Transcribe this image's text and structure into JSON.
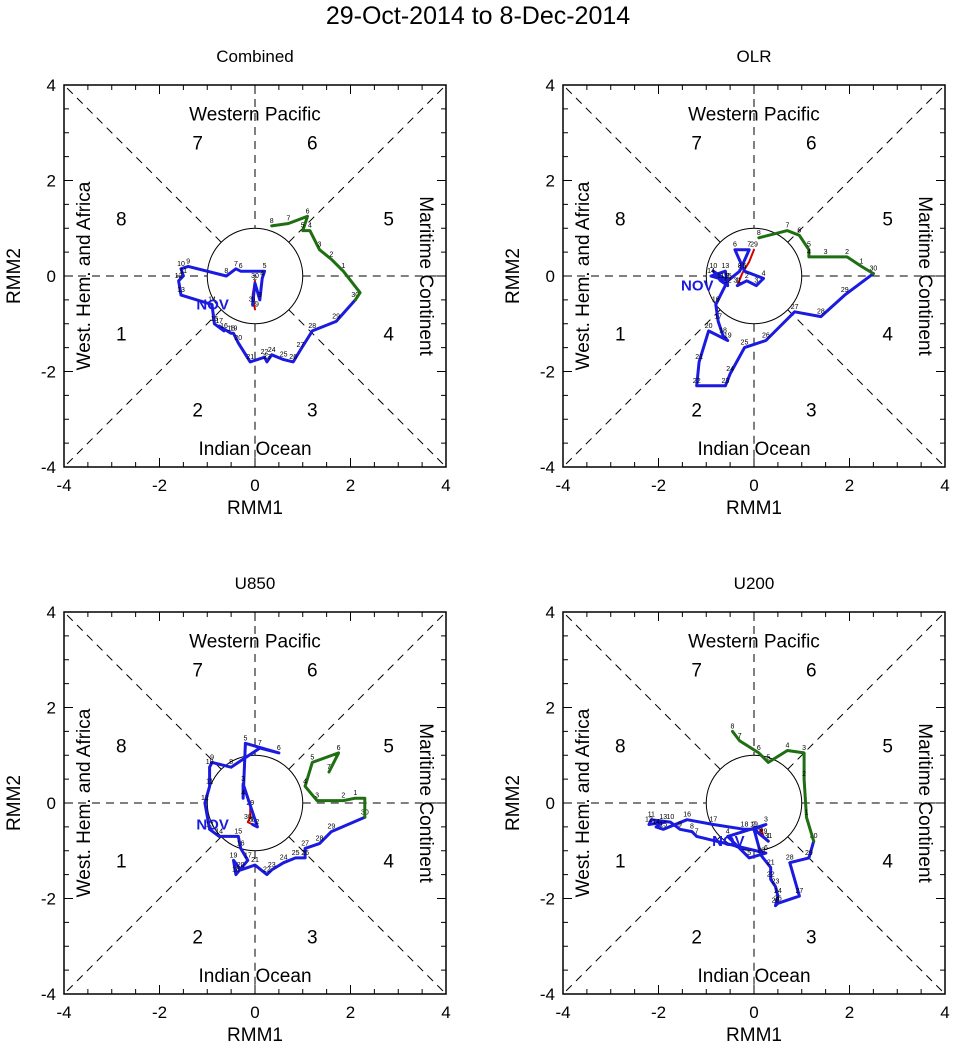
{
  "figure": {
    "title": "29-Oct-2014 to 8-Dec-2014",
    "month_label": "NOV",
    "colors": {
      "oct": "#d40000",
      "nov": "#1a1ae0",
      "dec": "#1f6e12",
      "month_label": "#1a1ae0",
      "axis": "#000000"
    }
  },
  "chart_data": [
    {
      "type": "line",
      "title": "Combined",
      "xlabel": "RMM1",
      "ylabel": "RMM2",
      "xlim": [
        -4,
        4
      ],
      "ylim": [
        -4,
        4
      ],
      "xticks": [
        "-4",
        "-2",
        "0",
        "2",
        "4"
      ],
      "yticks": [
        "-4",
        "-2",
        "0",
        "2",
        "4"
      ],
      "regions": {
        "top": "Western Pacific",
        "bottom": "Indian Ocean",
        "left": "West. Hem. and Africa",
        "right": "Maritime Continent"
      },
      "phases": [
        "1",
        "2",
        "3",
        "4",
        "5",
        "6",
        "7",
        "8"
      ],
      "series": [
        {
          "name": "October",
          "points": [
            [
              0.0,
              -0.7,
              "29"
            ],
            [
              -0.05,
              -0.4,
              ""
            ],
            [
              0.0,
              -0.1,
              "30"
            ],
            [
              -0.05,
              -0.6,
              "31"
            ]
          ]
        },
        {
          "name": "November",
          "points": [
            [
              -0.05,
              -0.6,
              "1"
            ],
            [
              0.0,
              -0.15,
              "2"
            ],
            [
              0.1,
              -0.5,
              "3"
            ],
            [
              0.15,
              -0.05,
              "4"
            ],
            [
              0.2,
              0.1,
              "5"
            ],
            [
              -0.3,
              0.1,
              "6"
            ],
            [
              -0.4,
              0.15,
              "7"
            ],
            [
              -0.6,
              0.0,
              "8"
            ],
            [
              -1.4,
              0.2,
              "9"
            ],
            [
              -1.55,
              0.15,
              "10"
            ],
            [
              -1.5,
              0.0,
              "11"
            ],
            [
              -1.6,
              -0.1,
              "12"
            ],
            [
              -1.55,
              -0.4,
              "13"
            ],
            [
              -0.9,
              -0.6,
              "14"
            ],
            [
              -0.85,
              -1.0,
              "15"
            ],
            [
              -0.65,
              -1.15,
              "16"
            ],
            [
              -0.75,
              -1.05,
              "17"
            ],
            [
              -0.5,
              -1.2,
              "18"
            ],
            [
              -0.45,
              -1.2,
              "19"
            ],
            [
              -0.35,
              -1.4,
              "20"
            ],
            [
              -0.1,
              -1.8,
              "21"
            ],
            [
              0.2,
              -1.7,
              "22"
            ],
            [
              0.25,
              -1.8,
              "23"
            ],
            [
              0.35,
              -1.65,
              "24"
            ],
            [
              0.6,
              -1.75,
              "25"
            ],
            [
              0.8,
              -1.8,
              "26"
            ],
            [
              0.95,
              -1.55,
              "27"
            ],
            [
              1.2,
              -1.15,
              "28"
            ],
            [
              1.7,
              -0.95,
              "29"
            ],
            [
              2.1,
              -0.5,
              "30"
            ]
          ]
        },
        {
          "name": "December",
          "points": [
            [
              2.1,
              -0.5,
              ""
            ],
            [
              2.2,
              -0.35,
              ""
            ],
            [
              1.85,
              0.1,
              "1"
            ],
            [
              1.6,
              0.35,
              "2"
            ],
            [
              1.35,
              0.55,
              "3"
            ],
            [
              1.15,
              0.95,
              "4"
            ],
            [
              1.0,
              0.95,
              "5"
            ],
            [
              1.1,
              1.25,
              "6"
            ],
            [
              0.7,
              1.1,
              "7"
            ],
            [
              0.35,
              1.05,
              "8"
            ]
          ]
        }
      ]
    },
    {
      "type": "line",
      "title": "OLR",
      "xlabel": "RMM1",
      "ylabel": "RMM2",
      "xlim": [
        -4,
        4
      ],
      "ylim": [
        -4,
        4
      ],
      "xticks": [
        "-4",
        "-2",
        "0",
        "2",
        "4"
      ],
      "yticks": [
        "-4",
        "-2",
        "0",
        "2",
        "4"
      ],
      "regions": {
        "top": "Western Pacific",
        "bottom": "Indian Ocean",
        "left": "West. Hem. and Africa",
        "right": "Maritime Continent"
      },
      "phases": [
        "1",
        "2",
        "3",
        "4",
        "5",
        "6",
        "7",
        "8"
      ],
      "series": [
        {
          "name": "October",
          "points": [
            [
              0.0,
              0.55,
              "29"
            ],
            [
              -0.1,
              0.3,
              ""
            ],
            [
              -0.25,
              0.05,
              "30"
            ],
            [
              -0.35,
              -0.2,
              "31"
            ]
          ]
        },
        {
          "name": "November",
          "points": [
            [
              -0.35,
              -0.2,
              "1"
            ],
            [
              -0.15,
              -0.1,
              "2"
            ],
            [
              0.05,
              -0.2,
              "3"
            ],
            [
              0.2,
              -0.05,
              "4"
            ],
            [
              -0.2,
              0.1,
              "5"
            ],
            [
              -0.4,
              0.55,
              "6"
            ],
            [
              -0.1,
              0.55,
              "7"
            ],
            [
              -0.3,
              0.1,
              "8"
            ],
            [
              -0.55,
              -0.1,
              "9"
            ],
            [
              -0.85,
              0.1,
              "10"
            ],
            [
              -0.7,
              -0.1,
              "11"
            ],
            [
              -0.55,
              -0.2,
              "12"
            ],
            [
              -0.6,
              0.1,
              "13"
            ],
            [
              -0.9,
              0.0,
              "14"
            ],
            [
              -0.55,
              -0.1,
              "15"
            ],
            [
              -0.8,
              -0.6,
              "16"
            ],
            [
              -0.75,
              -0.95,
              "17"
            ],
            [
              -0.65,
              -1.25,
              "18"
            ],
            [
              -0.55,
              -1.35,
              "19"
            ],
            [
              -0.95,
              -1.15,
              "20"
            ],
            [
              -1.15,
              -1.8,
              "21"
            ],
            [
              -1.2,
              -2.3,
              "22"
            ],
            [
              -0.6,
              -2.3,
              "23"
            ],
            [
              -0.5,
              -2.05,
              "24"
            ],
            [
              -0.2,
              -1.5,
              "25"
            ],
            [
              0.25,
              -1.35,
              "26"
            ],
            [
              0.85,
              -0.75,
              "27"
            ],
            [
              1.4,
              -0.85,
              "28"
            ],
            [
              1.9,
              -0.4,
              "29"
            ],
            [
              2.5,
              0.05,
              "30"
            ]
          ]
        },
        {
          "name": "December",
          "points": [
            [
              2.5,
              0.05,
              ""
            ],
            [
              2.25,
              0.2,
              "1"
            ],
            [
              1.95,
              0.4,
              "2"
            ],
            [
              1.5,
              0.4,
              "3"
            ],
            [
              1.15,
              0.4,
              "4"
            ],
            [
              1.15,
              0.55,
              "5"
            ],
            [
              0.95,
              0.85,
              "6"
            ],
            [
              0.7,
              0.95,
              "7"
            ],
            [
              0.1,
              0.8,
              "8"
            ]
          ]
        }
      ]
    },
    {
      "type": "line",
      "title": "U850",
      "xlabel": "RMM1",
      "ylabel": "RMM2",
      "xlim": [
        -4,
        4
      ],
      "ylim": [
        -4,
        4
      ],
      "xticks": [
        "-4",
        "-2",
        "0",
        "2",
        "4"
      ],
      "yticks": [
        "-4",
        "-2",
        "0",
        "2",
        "4"
      ],
      "regions": {
        "top": "Western Pacific",
        "bottom": "Indian Ocean",
        "left": "West. Hem. and Africa",
        "right": "Maritime Continent"
      },
      "phases": [
        "1",
        "2",
        "3",
        "4",
        "5",
        "6",
        "7",
        "8"
      ],
      "series": [
        {
          "name": "October",
          "points": [
            [
              -0.1,
              -0.1,
              "29"
            ],
            [
              -0.1,
              -0.3,
              ""
            ],
            [
              -0.15,
              -0.4,
              "30"
            ],
            [
              -0.05,
              -0.45,
              "31"
            ]
          ]
        },
        {
          "name": "November",
          "points": [
            [
              -0.05,
              -0.45,
              "1"
            ],
            [
              0.05,
              -0.5,
              "2"
            ],
            [
              -0.25,
              0.4,
              "3"
            ],
            [
              -0.25,
              0.1,
              "4"
            ],
            [
              -0.2,
              1.25,
              "5"
            ],
            [
              0.5,
              1.05,
              "6"
            ],
            [
              0.1,
              1.15,
              "7"
            ],
            [
              -0.5,
              0.75,
              "8"
            ],
            [
              -0.9,
              0.85,
              "9"
            ],
            [
              -0.95,
              0.75,
              "10"
            ],
            [
              -0.95,
              0.35,
              "11"
            ],
            [
              -1.05,
              0.0,
              "12"
            ],
            [
              -0.95,
              -0.55,
              "13"
            ],
            [
              -0.75,
              -0.7,
              "14"
            ],
            [
              -0.35,
              -0.7,
              "15"
            ],
            [
              -0.3,
              -0.95,
              "16"
            ],
            [
              -0.15,
              -1.2,
              "17"
            ],
            [
              -0.4,
              -1.5,
              "18"
            ],
            [
              -0.45,
              -1.2,
              "19"
            ],
            [
              -0.3,
              -1.4,
              "20"
            ],
            [
              0.0,
              -1.3,
              "21"
            ],
            [
              0.25,
              -1.5,
              "22"
            ],
            [
              0.35,
              -1.4,
              "23"
            ],
            [
              0.6,
              -1.25,
              "24"
            ],
            [
              0.85,
              -1.15,
              "25"
            ],
            [
              1.05,
              -1.15,
              "26"
            ],
            [
              1.05,
              -0.95,
              "27"
            ],
            [
              1.35,
              -0.85,
              "28"
            ],
            [
              1.6,
              -0.6,
              "29"
            ],
            [
              2.3,
              -0.3,
              "30"
            ]
          ]
        },
        {
          "name": "December",
          "points": [
            [
              2.3,
              -0.3,
              ""
            ],
            [
              2.3,
              0.1,
              ""
            ],
            [
              2.1,
              0.1,
              "1"
            ],
            [
              1.85,
              0.05,
              "2"
            ],
            [
              1.3,
              0.05,
              "3"
            ],
            [
              1.05,
              0.35,
              "4"
            ],
            [
              1.2,
              0.85,
              "5"
            ],
            [
              1.75,
              1.05,
              "6"
            ],
            [
              1.55,
              0.65,
              "7"
            ]
          ]
        }
      ]
    },
    {
      "type": "line",
      "title": "U200",
      "xlabel": "RMM1",
      "ylabel": "RMM2",
      "xlim": [
        -4,
        4
      ],
      "ylim": [
        -4,
        4
      ],
      "xticks": [
        "-4",
        "-2",
        "0",
        "2",
        "4"
      ],
      "yticks": [
        "-4",
        "-2",
        "0",
        "2",
        "4"
      ],
      "regions": {
        "top": "Western Pacific",
        "bottom": "Indian Ocean",
        "left": "West. Hem. and Africa",
        "right": "Maritime Continent"
      },
      "phases": [
        "1",
        "2",
        "3",
        "4",
        "5",
        "6",
        "7",
        "8"
      ],
      "series": [
        {
          "name": "October",
          "points": [
            [
              0.2,
              -0.7,
              "29"
            ],
            [
              0.15,
              -0.55,
              ""
            ],
            [
              0.1,
              -0.65,
              "30"
            ],
            [
              0.3,
              -0.8,
              "31"
            ]
          ]
        },
        {
          "name": "November",
          "points": [
            [
              0.3,
              -0.8,
              "1"
            ],
            [
              0.0,
              -0.55,
              "2"
            ],
            [
              0.25,
              -0.45,
              "3"
            ],
            [
              -0.55,
              -0.7,
              "4"
            ],
            [
              -0.1,
              -1.15,
              "5"
            ],
            [
              0.25,
              -1.05,
              "6"
            ],
            [
              -1.2,
              -0.7,
              "7"
            ],
            [
              -1.3,
              -0.6,
              "8"
            ],
            [
              -1.55,
              -0.55,
              "9"
            ],
            [
              -1.75,
              -0.4,
              "10"
            ],
            [
              -2.15,
              -0.35,
              "11"
            ],
            [
              -2.2,
              -0.45,
              "12"
            ],
            [
              -1.9,
              -0.4,
              "13"
            ],
            [
              -2.05,
              -0.5,
              "14"
            ],
            [
              -1.9,
              -0.55,
              "15"
            ],
            [
              -1.4,
              -0.35,
              "16"
            ],
            [
              -0.85,
              -0.45,
              "17"
            ],
            [
              -0.2,
              -0.55,
              "18"
            ],
            [
              0.0,
              -0.55,
              "19"
            ],
            [
              0.15,
              -1.1,
              "20"
            ],
            [
              0.35,
              -1.35,
              "21"
            ],
            [
              0.35,
              -1.6,
              "22"
            ],
            [
              0.45,
              -1.75,
              "23"
            ],
            [
              0.5,
              -1.95,
              "24"
            ],
            [
              0.45,
              -2.15,
              "25"
            ],
            [
              0.5,
              -2.1,
              "26"
            ],
            [
              0.95,
              -1.95,
              "27"
            ],
            [
              0.75,
              -1.25,
              "28"
            ],
            [
              1.15,
              -1.15,
              "29"
            ],
            [
              1.25,
              -0.8,
              "30"
            ]
          ]
        },
        {
          "name": "December",
          "points": [
            [
              1.25,
              -0.8,
              ""
            ],
            [
              1.1,
              -0.3,
              "1"
            ],
            [
              1.05,
              0.5,
              "2"
            ],
            [
              1.05,
              1.05,
              "3"
            ],
            [
              0.7,
              1.1,
              "4"
            ],
            [
              0.3,
              0.85,
              "5"
            ],
            [
              0.1,
              1.05,
              "6"
            ],
            [
              -0.3,
              1.3,
              "7"
            ],
            [
              -0.45,
              1.5,
              "8"
            ]
          ]
        }
      ]
    }
  ]
}
